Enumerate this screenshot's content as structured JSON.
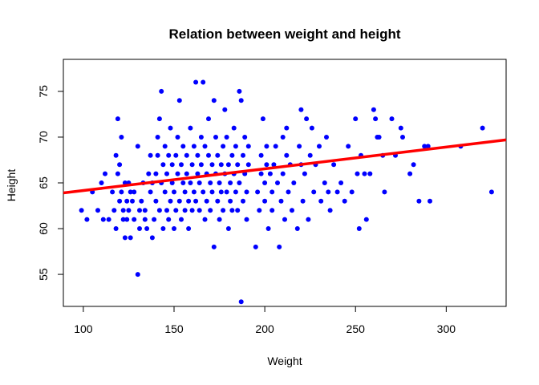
{
  "chart_data": {
    "type": "scatter",
    "title": "Relation between weight and height",
    "xlabel": "Weight",
    "ylabel": "Height",
    "xlim": [
      89,
      333
    ],
    "ylim": [
      51.5,
      78.5
    ],
    "xticks": [
      100,
      150,
      200,
      250,
      300
    ],
    "yticks": [
      55,
      60,
      65,
      70,
      75
    ],
    "grid": false,
    "legend": "none",
    "point_color": "#0000ff",
    "line_color": "#ff0000",
    "regression_line": {
      "x": [
        89,
        333
      ],
      "y": [
        63.9,
        69.7
      ]
    },
    "points": [
      [
        99,
        62
      ],
      [
        102,
        61
      ],
      [
        105,
        64
      ],
      [
        108,
        62
      ],
      [
        110,
        65
      ],
      [
        111,
        61
      ],
      [
        112,
        66
      ],
      [
        114,
        61
      ],
      [
        116,
        64
      ],
      [
        117,
        62
      ],
      [
        118,
        60
      ],
      [
        118,
        68
      ],
      [
        119,
        72
      ],
      [
        119,
        66
      ],
      [
        120,
        63
      ],
      [
        120,
        67
      ],
      [
        121,
        70
      ],
      [
        121,
        64
      ],
      [
        122,
        62
      ],
      [
        122,
        61
      ],
      [
        123,
        65
      ],
      [
        123,
        59
      ],
      [
        124,
        63
      ],
      [
        124,
        61
      ],
      [
        125,
        65
      ],
      [
        125,
        62
      ],
      [
        126,
        64
      ],
      [
        126,
        59
      ],
      [
        127,
        63
      ],
      [
        128,
        61
      ],
      [
        128,
        64
      ],
      [
        130,
        69
      ],
      [
        130,
        55
      ],
      [
        131,
        60
      ],
      [
        131,
        62
      ],
      [
        132,
        63
      ],
      [
        133,
        65
      ],
      [
        134,
        62
      ],
      [
        134,
        61
      ],
      [
        135,
        60
      ],
      [
        136,
        66
      ],
      [
        137,
        68
      ],
      [
        137,
        64
      ],
      [
        138,
        65
      ],
      [
        138,
        59
      ],
      [
        139,
        61
      ],
      [
        140,
        63
      ],
      [
        140,
        66
      ],
      [
        141,
        70
      ],
      [
        141,
        68
      ],
      [
        142,
        72
      ],
      [
        142,
        62
      ],
      [
        143,
        75
      ],
      [
        143,
        65
      ],
      [
        144,
        60
      ],
      [
        144,
        67
      ],
      [
        145,
        64
      ],
      [
        145,
        69
      ],
      [
        146,
        62
      ],
      [
        146,
        66
      ],
      [
        147,
        68
      ],
      [
        147,
        61
      ],
      [
        148,
        71
      ],
      [
        148,
        63
      ],
      [
        149,
        65
      ],
      [
        149,
        67
      ],
      [
        150,
        60
      ],
      [
        150,
        64
      ],
      [
        151,
        68
      ],
      [
        151,
        62
      ],
      [
        152,
        70
      ],
      [
        152,
        66
      ],
      [
        153,
        74
      ],
      [
        153,
        63
      ],
      [
        154,
        67
      ],
      [
        154,
        61
      ],
      [
        155,
        65
      ],
      [
        155,
        69
      ],
      [
        156,
        62
      ],
      [
        156,
        64
      ],
      [
        157,
        66
      ],
      [
        157,
        68
      ],
      [
        158,
        60
      ],
      [
        158,
        63
      ],
      [
        159,
        71
      ],
      [
        159,
        65
      ],
      [
        160,
        67
      ],
      [
        160,
        62
      ],
      [
        161,
        64
      ],
      [
        161,
        69
      ],
      [
        162,
        76
      ],
      [
        162,
        63
      ],
      [
        163,
        68
      ],
      [
        163,
        66
      ],
      [
        164,
        65
      ],
      [
        164,
        62
      ],
      [
        165,
        70
      ],
      [
        165,
        67
      ],
      [
        166,
        76
      ],
      [
        166,
        64
      ],
      [
        167,
        61
      ],
      [
        167,
        69
      ],
      [
        168,
        66
      ],
      [
        168,
        63
      ],
      [
        169,
        68
      ],
      [
        169,
        72
      ],
      [
        170,
        65
      ],
      [
        170,
        62
      ],
      [
        171,
        67
      ],
      [
        171,
        64
      ],
      [
        172,
        74
      ],
      [
        172,
        58
      ],
      [
        173,
        70
      ],
      [
        173,
        66
      ],
      [
        174,
        63
      ],
      [
        174,
        68
      ],
      [
        175,
        65
      ],
      [
        175,
        61
      ],
      [
        176,
        67
      ],
      [
        176,
        64
      ],
      [
        177,
        69
      ],
      [
        177,
        62
      ],
      [
        178,
        73
      ],
      [
        178,
        66
      ],
      [
        179,
        64
      ],
      [
        179,
        70
      ],
      [
        180,
        60
      ],
      [
        180,
        67
      ],
      [
        181,
        65
      ],
      [
        181,
        63
      ],
      [
        182,
        68
      ],
      [
        182,
        62
      ],
      [
        183,
        71
      ],
      [
        183,
        66
      ],
      [
        184,
        64
      ],
      [
        184,
        69
      ],
      [
        185,
        62
      ],
      [
        185,
        67
      ],
      [
        186,
        75
      ],
      [
        186,
        65
      ],
      [
        187,
        52
      ],
      [
        187,
        74
      ],
      [
        188,
        68
      ],
      [
        188,
        63
      ],
      [
        189,
        66
      ],
      [
        189,
        70
      ],
      [
        190,
        64
      ],
      [
        190,
        61
      ],
      [
        191,
        67
      ],
      [
        191,
        69
      ],
      [
        195,
        58
      ],
      [
        196,
        64
      ],
      [
        197,
        62
      ],
      [
        198,
        66
      ],
      [
        198,
        68
      ],
      [
        199,
        72
      ],
      [
        200,
        65
      ],
      [
        200,
        63
      ],
      [
        201,
        67
      ],
      [
        201,
        69
      ],
      [
        202,
        60
      ],
      [
        203,
        66
      ],
      [
        204,
        64
      ],
      [
        204,
        62
      ],
      [
        205,
        67
      ],
      [
        206,
        69
      ],
      [
        207,
        65
      ],
      [
        208,
        58
      ],
      [
        209,
        63
      ],
      [
        210,
        70
      ],
      [
        210,
        66
      ],
      [
        211,
        61
      ],
      [
        212,
        68
      ],
      [
        212,
        71
      ],
      [
        213,
        64
      ],
      [
        214,
        67
      ],
      [
        215,
        62
      ],
      [
        216,
        65
      ],
      [
        218,
        60
      ],
      [
        219,
        69
      ],
      [
        220,
        73
      ],
      [
        220,
        67
      ],
      [
        221,
        63
      ],
      [
        222,
        66
      ],
      [
        223,
        72
      ],
      [
        224,
        61
      ],
      [
        225,
        68
      ],
      [
        226,
        71
      ],
      [
        227,
        64
      ],
      [
        228,
        67
      ],
      [
        230,
        69
      ],
      [
        231,
        63
      ],
      [
        233,
        65
      ],
      [
        234,
        70
      ],
      [
        235,
        64
      ],
      [
        236,
        62
      ],
      [
        238,
        67
      ],
      [
        240,
        64
      ],
      [
        242,
        65
      ],
      [
        244,
        63
      ],
      [
        246,
        69
      ],
      [
        248,
        64
      ],
      [
        250,
        72
      ],
      [
        251,
        66
      ],
      [
        252,
        60
      ],
      [
        253,
        68
      ],
      [
        255,
        66
      ],
      [
        256,
        61
      ],
      [
        258,
        66
      ],
      [
        260,
        73
      ],
      [
        261,
        72
      ],
      [
        262,
        70
      ],
      [
        263,
        70
      ],
      [
        265,
        68
      ],
      [
        266,
        64
      ],
      [
        270,
        72
      ],
      [
        272,
        68
      ],
      [
        275,
        71
      ],
      [
        276,
        70
      ],
      [
        280,
        66
      ],
      [
        282,
        67
      ],
      [
        285,
        63
      ],
      [
        288,
        69
      ],
      [
        290,
        69
      ],
      [
        291,
        63
      ],
      [
        308,
        69
      ],
      [
        320,
        71
      ],
      [
        325,
        64
      ]
    ]
  }
}
